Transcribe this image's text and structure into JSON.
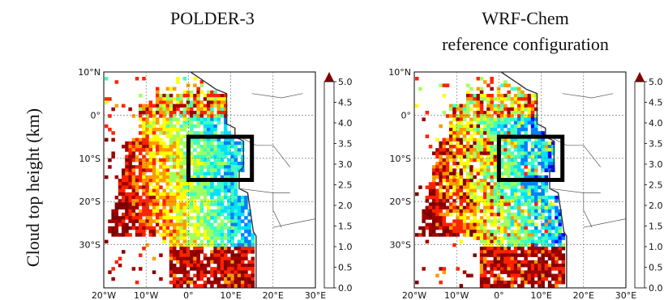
{
  "figure": {
    "ylabel": "Cloud top height (km)",
    "colormap": [
      "#00007f",
      "#0000ff",
      "#0080ff",
      "#00e0ff",
      "#40ffc0",
      "#a0ff60",
      "#ffff00",
      "#ff9a00",
      "#ff2200",
      "#a00000",
      "#7f0000"
    ]
  },
  "panels": [
    {
      "title_lines": [
        "POLDER-3"
      ],
      "lat_ticks": [
        "10°N",
        "0°",
        "10°S",
        "20°S",
        "30°S"
      ],
      "lon_ticks": [
        "20°W",
        "10°W",
        "0°",
        "10°E",
        "20°E",
        "30°E"
      ],
      "colorbar_ticks": [
        "5.0",
        "4.5",
        "4.0",
        "3.5",
        "3.0",
        "2.5",
        "2.0",
        "1.5",
        "1.0",
        "0.5",
        "0.0"
      ],
      "highlight_box_deg": {
        "lon": [
          0,
          15
        ],
        "lat": [
          -15,
          -5
        ]
      }
    },
    {
      "title_lines": [
        "WRF-Chem",
        "reference configuration"
      ],
      "lat_ticks": [
        "10°N",
        "0°",
        "10°S",
        "20°S",
        "30°S"
      ],
      "lon_ticks": [
        "20°W",
        "10°W",
        "0°",
        "10°E",
        "20°E",
        "30°E"
      ],
      "colorbar_ticks": [
        "5.0",
        "4.5",
        "4.0",
        "3.5",
        "3.0",
        "2.5",
        "2.0",
        "1.5",
        "1.0",
        "0.5",
        "0.0"
      ],
      "highlight_box_deg": {
        "lon": [
          0,
          15
        ],
        "lat": [
          -15,
          -5
        ]
      }
    }
  ]
}
